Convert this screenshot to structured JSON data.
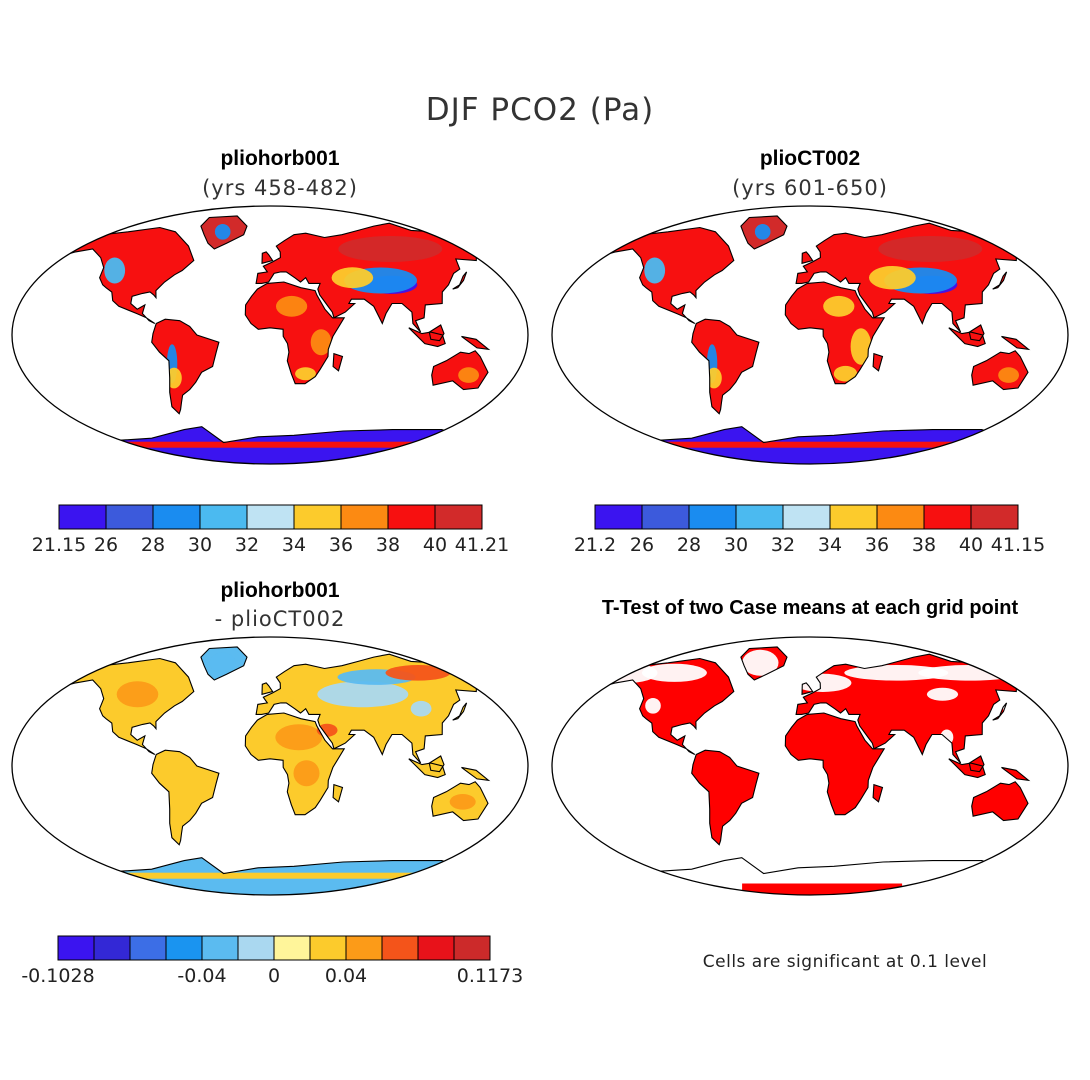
{
  "figure": {
    "title": "DJF PCO2 (Pa)"
  },
  "panels": [
    {
      "id": "p1",
      "title": "pliohorb001",
      "subtitle": "(yrs 458-482)",
      "colorbar": {
        "colors": [
          "#3b14f0",
          "#3c5adc",
          "#1a8cf0",
          "#4bbaf0",
          "#bfe3f3",
          "#fccb2c",
          "#fc8a12",
          "#f71010",
          "#d22a2a"
        ],
        "tick_labels": [
          "21.15",
          "26",
          "28",
          "30",
          "32",
          "34",
          "36",
          "38",
          "40",
          "41.21"
        ]
      }
    },
    {
      "id": "p2",
      "title": "plioCT002",
      "subtitle": "(yrs 601-650)",
      "colorbar": {
        "colors": [
          "#3b14f0",
          "#3c5adc",
          "#1a8cf0",
          "#4bbaf0",
          "#bfe3f3",
          "#fccb2c",
          "#fc8a12",
          "#f71010",
          "#d22a2a"
        ],
        "tick_labels": [
          "21.2",
          "26",
          "28",
          "30",
          "32",
          "34",
          "36",
          "38",
          "40",
          "41.15"
        ]
      }
    },
    {
      "id": "p3",
      "title": "pliohorb001",
      "subtitle": "- plioCT002",
      "colorbar": {
        "colors": [
          "#3b14f0",
          "#3328d6",
          "#3c6ee6",
          "#1a94f0",
          "#5bbbf0",
          "#aad8f0",
          "#fff59a",
          "#fccb2c",
          "#fc9b18",
          "#f4541a",
          "#e8121a",
          "#cc2a2a"
        ],
        "tick_labels": [
          "-0.1028",
          "-0.04",
          "0",
          "0.04",
          "0.1173"
        ]
      }
    },
    {
      "id": "p4",
      "title": "T-Test of two Case means at each grid point",
      "note": "Cells are significant at 0.1 level"
    }
  ]
}
